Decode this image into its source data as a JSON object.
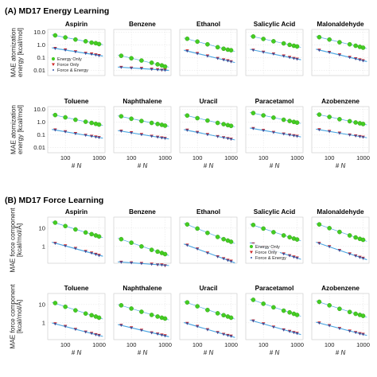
{
  "chart_data": [
    {
      "panel": "(A) MD17 Energy Learning",
      "type": "scatter",
      "x_scale": "log",
      "y_scale": "log",
      "xlim": [
        30,
        1500
      ],
      "ylim": [
        0.004,
        16
      ],
      "x_ticks": [
        "100",
        "1000"
      ],
      "y_ticks": [
        "0.01",
        "0.1",
        "1.0",
        "10.0"
      ],
      "xlabel": "# N",
      "ylabel": "MAE atomization energy [kcal/mol]",
      "legend": {
        "placement": "bottom-left",
        "panel": "Aspirin",
        "entries": [
          "Energy Only",
          "Force Only",
          "Force & Energy"
        ]
      },
      "x": [
        50,
        100,
        200,
        400,
        600,
        800,
        1000
      ],
      "series_colors": {
        "Energy Only": "#44cc22",
        "Force Only": "#cc2222",
        "Force & Energy": "#3355aa",
        "fit": "#3399dd"
      },
      "molecules": [
        {
          "name": "Aspirin",
          "series": [
            {
              "name": "Energy Only",
              "values": [
                5.5,
                3.8,
                2.6,
                1.9,
                1.5,
                1.35,
                1.15
              ]
            },
            {
              "name": "Force Only",
              "values": [
                0.55,
                0.42,
                0.3,
                0.23,
                0.2,
                0.17,
                0.15
              ]
            },
            {
              "name": "Force & Energy",
              "values": [
                0.5,
                0.38,
                0.28,
                0.21,
                0.18,
                0.16,
                0.14
              ]
            }
          ]
        },
        {
          "name": "Benzene",
          "series": [
            {
              "name": "Energy Only",
              "values": [
                0.14,
                0.09,
                0.06,
                0.04,
                0.03,
                0.025,
                0.02
              ]
            },
            {
              "name": "Force Only",
              "values": [
                0.018,
                0.016,
                0.015,
                0.013,
                0.012,
                0.011,
                0.011
              ]
            },
            {
              "name": "Force & Energy",
              "values": [
                0.017,
                0.015,
                0.014,
                0.012,
                0.011,
                0.011,
                0.01
              ]
            }
          ]
        },
        {
          "name": "Ethanol",
          "series": [
            {
              "name": "Energy Only",
              "values": [
                3.0,
                1.8,
                1.1,
                0.65,
                0.5,
                0.42,
                0.38
              ]
            },
            {
              "name": "Force Only",
              "values": [
                0.35,
                0.22,
                0.14,
                0.09,
                0.07,
                0.06,
                0.05
              ]
            },
            {
              "name": "Force & Energy",
              "values": [
                0.32,
                0.2,
                0.13,
                0.085,
                0.065,
                0.055,
                0.048
              ]
            }
          ]
        },
        {
          "name": "Salicylic Acid",
          "series": [
            {
              "name": "Energy Only",
              "values": [
                4.5,
                2.9,
                1.9,
                1.3,
                1.0,
                0.85,
                0.75
              ]
            },
            {
              "name": "Force Only",
              "values": [
                0.4,
                0.28,
                0.2,
                0.14,
                0.11,
                0.09,
                0.08
              ]
            },
            {
              "name": "Force & Energy",
              "values": [
                0.38,
                0.26,
                0.19,
                0.13,
                0.1,
                0.085,
                0.075
              ]
            }
          ]
        },
        {
          "name": "Malonaldehyde",
          "series": [
            {
              "name": "Energy Only",
              "values": [
                4.0,
                2.6,
                1.6,
                1.1,
                0.85,
                0.7,
                0.6
              ]
            },
            {
              "name": "Force Only",
              "values": [
                0.4,
                0.27,
                0.17,
                0.11,
                0.085,
                0.07,
                0.06
              ]
            },
            {
              "name": "Force & Energy",
              "values": [
                0.37,
                0.25,
                0.16,
                0.1,
                0.08,
                0.065,
                0.055
              ]
            }
          ]
        },
        {
          "name": "Toluene",
          "series": [
            {
              "name": "Energy Only",
              "values": [
                3.5,
                2.3,
                1.5,
                1.05,
                0.85,
                0.72,
                0.63
              ]
            },
            {
              "name": "Force Only",
              "values": [
                0.25,
                0.18,
                0.13,
                0.095,
                0.08,
                0.07,
                0.063
              ]
            },
            {
              "name": "Force & Energy",
              "values": [
                0.23,
                0.17,
                0.12,
                0.09,
                0.075,
                0.066,
                0.06
              ]
            }
          ]
        },
        {
          "name": "Naphthalene",
          "series": [
            {
              "name": "Energy Only",
              "values": [
                2.8,
                1.8,
                1.2,
                0.85,
                0.7,
                0.6,
                0.52
              ]
            },
            {
              "name": "Force Only",
              "values": [
                0.2,
                0.15,
                0.11,
                0.08,
                0.068,
                0.06,
                0.055
              ]
            },
            {
              "name": "Force & Energy",
              "values": [
                0.19,
                0.14,
                0.1,
                0.076,
                0.065,
                0.057,
                0.052
              ]
            }
          ]
        },
        {
          "name": "Uracil",
          "series": [
            {
              "name": "Energy Only",
              "values": [
                3.2,
                2.0,
                1.3,
                0.85,
                0.68,
                0.57,
                0.5
              ]
            },
            {
              "name": "Force Only",
              "values": [
                0.24,
                0.16,
                0.11,
                0.075,
                0.062,
                0.053,
                0.047
              ]
            },
            {
              "name": "Force & Energy",
              "values": [
                0.22,
                0.15,
                0.1,
                0.072,
                0.06,
                0.051,
                0.045
              ]
            }
          ]
        },
        {
          "name": "Paracetamol",
          "series": [
            {
              "name": "Energy Only",
              "values": [
                5.0,
                3.3,
                2.2,
                1.5,
                1.2,
                1.02,
                0.9
              ]
            },
            {
              "name": "Force Only",
              "values": [
                0.32,
                0.23,
                0.16,
                0.12,
                0.1,
                0.088,
                0.08
              ]
            },
            {
              "name": "Force & Energy",
              "values": [
                0.3,
                0.21,
                0.15,
                0.115,
                0.095,
                0.084,
                0.076
              ]
            }
          ]
        },
        {
          "name": "Azobenzene",
          "series": [
            {
              "name": "Energy Only",
              "values": [
                3.8,
                2.5,
                1.65,
                1.15,
                0.92,
                0.79,
                0.7
              ]
            },
            {
              "name": "Force Only",
              "values": [
                0.26,
                0.19,
                0.14,
                0.1,
                0.085,
                0.075,
                0.068
              ]
            },
            {
              "name": "Force & Energy",
              "values": [
                0.24,
                0.18,
                0.13,
                0.096,
                0.082,
                0.072,
                0.065
              ]
            }
          ]
        }
      ]
    },
    {
      "panel": "(B) MD17 Force Learning",
      "type": "scatter",
      "x_scale": "log",
      "y_scale": "log",
      "xlim": [
        30,
        1500
      ],
      "ylim": [
        0.12,
        40
      ],
      "x_ticks": [
        "100",
        "1000"
      ],
      "y_ticks": [
        "1",
        "10"
      ],
      "xlabel": "# N",
      "ylabel": "MAE force component [kcal/mol/Å]",
      "legend": {
        "placement": "bottom-left",
        "panel": "Salicylic Acid",
        "entries": [
          "Energy Only",
          "Force Only",
          "Force & Energy"
        ]
      },
      "x": [
        50,
        100,
        200,
        400,
        600,
        800,
        1000
      ],
      "series_colors": {
        "Energy Only": "#44cc22",
        "Force Only": "#cc2222",
        "Force & Energy": "#3355aa",
        "fit": "#3399dd"
      },
      "molecules": [
        {
          "name": "Aspirin",
          "series": [
            {
              "name": "Energy Only",
              "values": [
                20,
                13,
                8.5,
                5.8,
                4.7,
                4.0,
                3.5
              ]
            },
            {
              "name": "Force Only",
              "values": [
                1.5,
                1.1,
                0.8,
                0.55,
                0.45,
                0.38,
                0.33
              ]
            },
            {
              "name": "Force & Energy",
              "values": [
                1.45,
                1.05,
                0.75,
                0.52,
                0.43,
                0.36,
                0.31
              ]
            }
          ]
        },
        {
          "name": "Benzene",
          "series": [
            {
              "name": "Energy Only",
              "values": [
                2.5,
                1.6,
                1.0,
                0.65,
                0.52,
                0.44,
                0.38
              ]
            },
            {
              "name": "Force Only",
              "values": [
                0.14,
                0.13,
                0.12,
                0.11,
                0.1,
                0.1,
                0.09
              ]
            },
            {
              "name": "Force & Energy",
              "values": [
                0.135,
                0.125,
                0.115,
                0.105,
                0.1,
                0.095,
                0.09
              ]
            }
          ]
        },
        {
          "name": "Ethanol",
          "series": [
            {
              "name": "Energy Only",
              "values": [
                16,
                9.5,
                5.5,
                3.3,
                2.5,
                2.1,
                1.8
              ]
            },
            {
              "name": "Force Only",
              "values": [
                1.2,
                0.75,
                0.45,
                0.28,
                0.22,
                0.18,
                0.16
              ]
            },
            {
              "name": "Force & Energy",
              "values": [
                1.15,
                0.72,
                0.43,
                0.27,
                0.21,
                0.17,
                0.15
              ]
            }
          ]
        },
        {
          "name": "Salicylic Acid",
          "series": [
            {
              "name": "Energy Only",
              "values": [
                15,
                9.5,
                6.0,
                4.0,
                3.2,
                2.7,
                2.4
              ]
            },
            {
              "name": "Force Only",
              "values": [
                1.4,
                0.95,
                0.6,
                0.4,
                0.32,
                0.27,
                0.24
              ]
            },
            {
              "name": "Force & Energy",
              "values": [
                1.35,
                0.9,
                0.58,
                0.38,
                0.31,
                0.26,
                0.23
              ]
            }
          ]
        },
        {
          "name": "Malonaldehyde",
          "series": [
            {
              "name": "Energy Only",
              "values": [
                16,
                10,
                6.2,
                4.0,
                3.1,
                2.6,
                2.3
              ]
            },
            {
              "name": "Force Only",
              "values": [
                1.5,
                1.0,
                0.62,
                0.4,
                0.31,
                0.26,
                0.23
              ]
            },
            {
              "name": "Force & Energy",
              "values": [
                1.45,
                0.95,
                0.6,
                0.38,
                0.3,
                0.25,
                0.22
              ]
            }
          ]
        },
        {
          "name": "Toluene",
          "series": [
            {
              "name": "Energy Only",
              "values": [
                12,
                7.5,
                4.8,
                3.2,
                2.6,
                2.2,
                1.9
              ]
            },
            {
              "name": "Force Only",
              "values": [
                0.9,
                0.65,
                0.45,
                0.32,
                0.27,
                0.23,
                0.21
              ]
            },
            {
              "name": "Force & Energy",
              "values": [
                0.85,
                0.62,
                0.43,
                0.31,
                0.26,
                0.22,
                0.2
              ]
            }
          ]
        },
        {
          "name": "Naphthalene",
          "series": [
            {
              "name": "Energy Only",
              "values": [
                9,
                6.0,
                4.0,
                2.7,
                2.2,
                1.9,
                1.7
              ]
            },
            {
              "name": "Force Only",
              "values": [
                0.75,
                0.55,
                0.4,
                0.29,
                0.25,
                0.22,
                0.2
              ]
            },
            {
              "name": "Force & Energy",
              "values": [
                0.72,
                0.52,
                0.38,
                0.28,
                0.24,
                0.21,
                0.19
              ]
            }
          ]
        },
        {
          "name": "Uracil",
          "series": [
            {
              "name": "Energy Only",
              "values": [
                13,
                8.0,
                5.0,
                3.3,
                2.6,
                2.2,
                1.9
              ]
            },
            {
              "name": "Force Only",
              "values": [
                0.95,
                0.65,
                0.43,
                0.3,
                0.24,
                0.21,
                0.19
              ]
            },
            {
              "name": "Force & Energy",
              "values": [
                0.9,
                0.62,
                0.41,
                0.29,
                0.23,
                0.2,
                0.18
              ]
            }
          ]
        },
        {
          "name": "Paracetamol",
          "series": [
            {
              "name": "Energy Only",
              "values": [
                18,
                11,
                7.0,
                4.6,
                3.7,
                3.1,
                2.7
              ]
            },
            {
              "name": "Force Only",
              "values": [
                1.3,
                0.9,
                0.6,
                0.42,
                0.35,
                0.3,
                0.27
              ]
            },
            {
              "name": "Force & Energy",
              "values": [
                1.25,
                0.86,
                0.58,
                0.4,
                0.33,
                0.29,
                0.26
              ]
            }
          ]
        },
        {
          "name": "Azobenzene",
          "series": [
            {
              "name": "Energy Only",
              "values": [
                14,
                9.0,
                5.8,
                3.9,
                3.1,
                2.7,
                2.4
              ]
            },
            {
              "name": "Force Only",
              "values": [
                1.0,
                0.72,
                0.5,
                0.36,
                0.3,
                0.26,
                0.24
              ]
            },
            {
              "name": "Force & Energy",
              "values": [
                0.96,
                0.69,
                0.48,
                0.35,
                0.29,
                0.25,
                0.23
              ]
            }
          ]
        }
      ]
    }
  ]
}
